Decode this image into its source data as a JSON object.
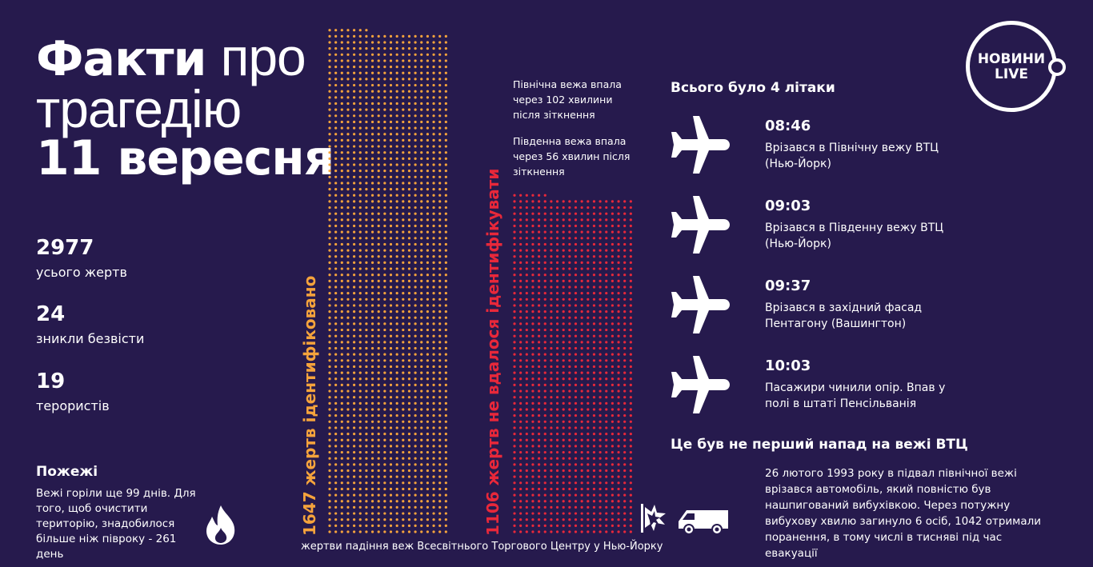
{
  "title": {
    "bold1": "Факти",
    "thin1": "про",
    "thin2": "трагедію",
    "bold2": "11 вересня"
  },
  "logo": {
    "line1": "НОВИНИ",
    "line2": "LIVE"
  },
  "stats": [
    {
      "num": "2977",
      "label": "усього жертв"
    },
    {
      "num": "24",
      "label": "зникли безвісти"
    },
    {
      "num": "19",
      "label": "терористів"
    }
  ],
  "fires": {
    "title": "Пожежі",
    "text": "Вежі горіли ще 99 днів. Для того, щоб очистити територію, знадобилося більше ніж півроку - 261 день",
    "icon": "fire-icon"
  },
  "towers": {
    "identified": {
      "label": "1647 жертв ідентифіковано",
      "count": 1647,
      "color": "#f5a33c"
    },
    "unidentified": {
      "label": "1106 жертв не вдалося ідентифікувати",
      "count": 1106,
      "color": "#e8283a"
    },
    "caption": "жертви падіння веж Всесвітнього Торгового Центру у Нью-Йорку",
    "north": "Північна вежа впала через 102 хвилини після зіткнення",
    "south": "Південна вежа впала через 56 хвилин після зіткнення"
  },
  "planes": {
    "title": "Всього було 4 літаки",
    "items": [
      {
        "time": "08:46",
        "text": "Врізався в Північну вежу ВТЦ (Нью-Йорк)"
      },
      {
        "time": "09:03",
        "text": "Врізався в Південну вежу ВТЦ (Нью-Йорк)"
      },
      {
        "time": "09:37",
        "text": "Врізався в західний фасад Пентагону (Вашингтон)"
      },
      {
        "time": "10:03",
        "text": "Пасажири чинили опір. Впав у полі в штаті Пенсільванія"
      }
    ]
  },
  "attack1993": {
    "title": "Це був не перший напад на вежі ВТЦ",
    "text": "26 лютого 1993 року в підвал північної вежі врізався автомобіль, який повністю був нашпигований вибухівкою. Через потужну вибухову хвилю загинуло 6 осіб, 1042 отримали поранення, в тому числі в тисняві під час евакуації"
  }
}
